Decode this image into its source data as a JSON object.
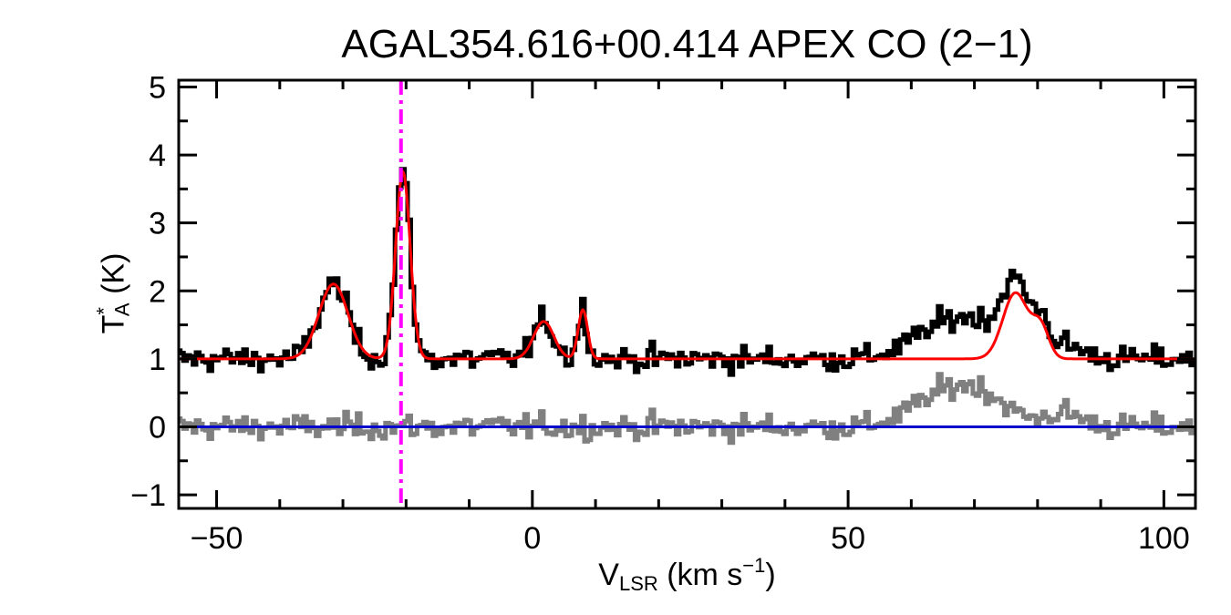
{
  "chart_data": {
    "type": "line",
    "title": "AGAL354.616+00.414  APEX CO (2−1)",
    "xlabel": {
      "main": "V",
      "sub": "LSR",
      "rest": " (km s",
      "sup": "−1",
      "end": ")"
    },
    "ylabel": {
      "main": "T",
      "sup": "*",
      "sub": "A",
      "rest": " (K)"
    },
    "xlim": [
      -56,
      105
    ],
    "ylim": [
      -1.2,
      5.1
    ],
    "xticks": [
      -50,
      0,
      50,
      100
    ],
    "xtick_labels": [
      "−50",
      "0",
      "50",
      "100"
    ],
    "yticks": [
      -1,
      0,
      1,
      2,
      3,
      4,
      5
    ],
    "ytick_labels": [
      "−1",
      "0",
      "1",
      "2",
      "3",
      "4",
      "5"
    ],
    "xminor_step": 10,
    "yminor_step": 0.5,
    "grid": false,
    "vline": {
      "x": -20.8,
      "color": "#ff00ff",
      "style": "dash-dot"
    },
    "zero_line": {
      "y": 0,
      "color": "#0000cc"
    },
    "baseline": 1.0,
    "fit_components": [
      {
        "center": -31.5,
        "amp": 1.1,
        "sigma": 2.3
      },
      {
        "center": -20.5,
        "amp": 2.75,
        "sigma": 1.15
      },
      {
        "center": 1.8,
        "amp": 0.55,
        "sigma": 1.6
      },
      {
        "center": 8.0,
        "amp": 0.72,
        "sigma": 0.75
      },
      {
        "center": 76.5,
        "amp": 0.97,
        "sigma": 2.0
      },
      {
        "center": 80.5,
        "amp": 0.45,
        "sigma": 1.3
      }
    ],
    "observed_extra_components": [
      {
        "center": 66.0,
        "amp": 0.5,
        "sigma": 5.5
      },
      {
        "center": 72.0,
        "amp": 0.25,
        "sigma": 4.0
      },
      {
        "center": 84.0,
        "amp": 0.2,
        "sigma": 3.0
      }
    ],
    "channel_width": 0.5,
    "noise_rms": 0.09,
    "series": [
      {
        "color": "#000000"
      },
      {
        "color": "#ff0000"
      },
      {
        "color": "#808080"
      }
    ]
  }
}
